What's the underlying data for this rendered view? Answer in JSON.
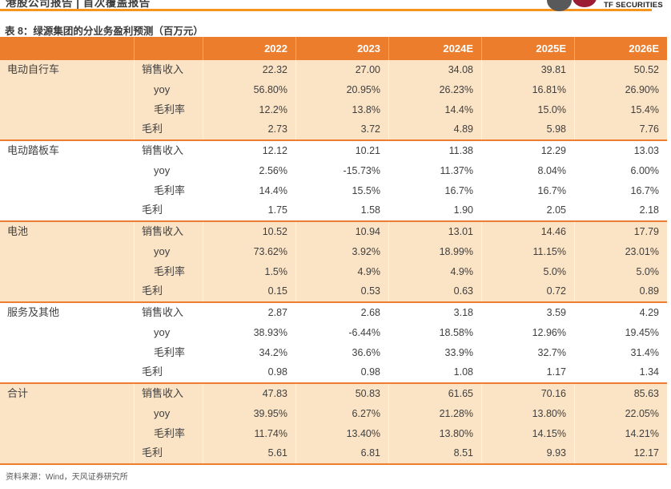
{
  "page": {
    "report_type": "港股公司报告 | 首次覆盖报告",
    "brand": "TF SECURITIES"
  },
  "colors": {
    "header_orange": "#EC7D2D",
    "rule_orange": "#F7941E",
    "separator_orange": "#ED7D31",
    "shaded_row_peach": "#FBE3C5",
    "logo_gray": "#58595B",
    "logo_red": "#9C1C33",
    "text_dark": "#404040"
  },
  "table": {
    "title": "表 8：绿源集团的分业务盈利预测（百万元）",
    "columns": [
      "2022",
      "2023",
      "2024E",
      "2025E",
      "2026E"
    ],
    "segments": [
      {
        "name": "电动自行车",
        "shaded": true,
        "rows": [
          {
            "metric": "销售收入",
            "indent": 0,
            "values": [
              "22.32",
              "27.00",
              "34.08",
              "39.81",
              "50.52"
            ]
          },
          {
            "metric": "yoy",
            "indent": 1,
            "values": [
              "56.80%",
              "20.95%",
              "26.23%",
              "16.81%",
              "26.90%"
            ]
          },
          {
            "metric": "毛利率",
            "indent": 1,
            "values": [
              "12.2%",
              "13.8%",
              "14.4%",
              "15.0%",
              "15.4%"
            ]
          },
          {
            "metric": "毛利",
            "indent": 0,
            "values": [
              "2.73",
              "3.72",
              "4.89",
              "5.98",
              "7.76"
            ]
          }
        ]
      },
      {
        "name": "电动踏板车",
        "shaded": false,
        "rows": [
          {
            "metric": "销售收入",
            "indent": 0,
            "values": [
              "12.12",
              "10.21",
              "11.38",
              "12.29",
              "13.03"
            ]
          },
          {
            "metric": "yoy",
            "indent": 1,
            "values": [
              "2.56%",
              "-15.73%",
              "11.37%",
              "8.04%",
              "6.00%"
            ]
          },
          {
            "metric": "毛利率",
            "indent": 1,
            "values": [
              "14.4%",
              "15.5%",
              "16.7%",
              "16.7%",
              "16.7%"
            ]
          },
          {
            "metric": "毛利",
            "indent": 0,
            "values": [
              "1.75",
              "1.58",
              "1.90",
              "2.05",
              "2.18"
            ]
          }
        ]
      },
      {
        "name": "电池",
        "shaded": true,
        "rows": [
          {
            "metric": "销售收入",
            "indent": 0,
            "values": [
              "10.52",
              "10.94",
              "13.01",
              "14.46",
              "17.79"
            ]
          },
          {
            "metric": "yoy",
            "indent": 1,
            "values": [
              "73.62%",
              "3.92%",
              "18.99%",
              "11.15%",
              "23.01%"
            ]
          },
          {
            "metric": "毛利率",
            "indent": 1,
            "values": [
              "1.5%",
              "4.9%",
              "4.9%",
              "5.0%",
              "5.0%"
            ]
          },
          {
            "metric": "毛利",
            "indent": 0,
            "values": [
              "0.15",
              "0.53",
              "0.63",
              "0.72",
              "0.89"
            ]
          }
        ]
      },
      {
        "name": "服务及其他",
        "shaded": false,
        "rows": [
          {
            "metric": "销售收入",
            "indent": 0,
            "values": [
              "2.87",
              "2.68",
              "3.18",
              "3.59",
              "4.29"
            ]
          },
          {
            "metric": "yoy",
            "indent": 1,
            "values": [
              "38.93%",
              "-6.44%",
              "18.58%",
              "12.96%",
              "19.45%"
            ]
          },
          {
            "metric": "毛利率",
            "indent": 1,
            "values": [
              "34.2%",
              "36.6%",
              "33.9%",
              "32.7%",
              "31.4%"
            ]
          },
          {
            "metric": "毛利",
            "indent": 0,
            "values": [
              "0.98",
              "0.98",
              "1.08",
              "1.17",
              "1.34"
            ]
          }
        ]
      },
      {
        "name": "合计",
        "shaded": true,
        "rows": [
          {
            "metric": "销售收入",
            "indent": 0,
            "values": [
              "47.83",
              "50.83",
              "61.65",
              "70.16",
              "85.63"
            ]
          },
          {
            "metric": "yoy",
            "indent": 1,
            "values": [
              "39.95%",
              "6.27%",
              "21.28%",
              "13.80%",
              "22.05%"
            ]
          },
          {
            "metric": "毛利率",
            "indent": 1,
            "values": [
              "11.74%",
              "13.40%",
              "13.80%",
              "14.15%",
              "14.21%"
            ]
          },
          {
            "metric": "毛利",
            "indent": 0,
            "values": [
              "5.61",
              "6.81",
              "8.51",
              "9.93",
              "12.17"
            ]
          }
        ]
      }
    ],
    "source": "资料来源：Wind，天风证券研究所"
  }
}
